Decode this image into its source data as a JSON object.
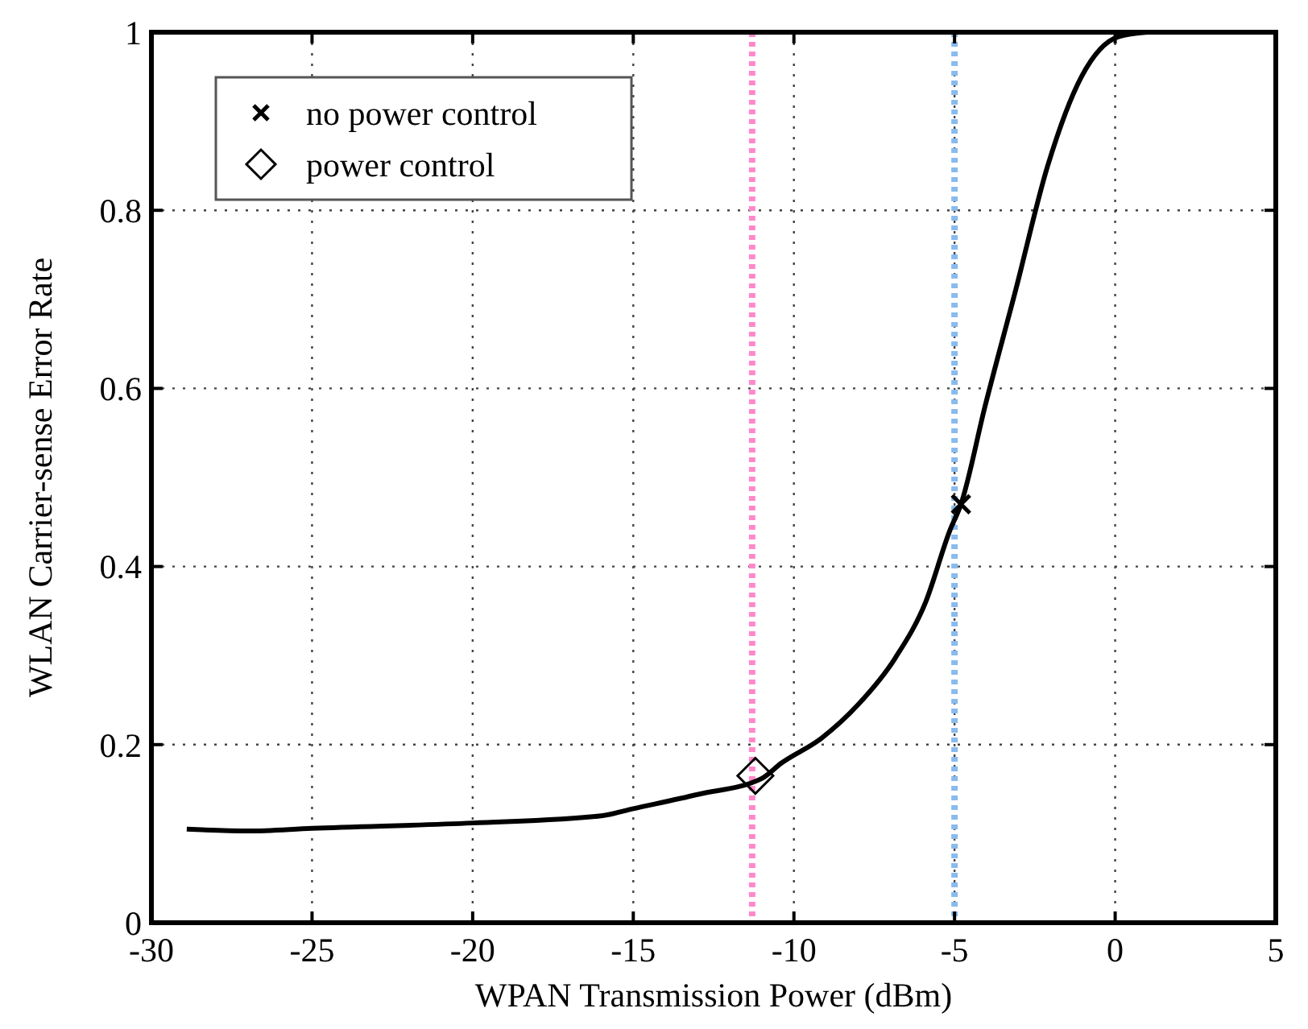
{
  "chart_data": {
    "type": "line",
    "xlabel": "WPAN Transmission Power (dBm)",
    "ylabel": "WLAN Carrier-sense Error Rate",
    "xlim": [
      -30,
      5
    ],
    "ylim": [
      0,
      1
    ],
    "xticks": [
      -30,
      -25,
      -20,
      -15,
      -10,
      -5,
      0,
      5
    ],
    "yticks": [
      0,
      0.2,
      0.4,
      0.6,
      0.8,
      1
    ],
    "grid": true,
    "legend": "top left",
    "series": [
      {
        "color": "#000000",
        "marker": "none",
        "line_style": "solid",
        "x": [
          -28.9,
          -27,
          -25,
          -20,
          -16,
          -15,
          -13,
          -11,
          -10.4,
          -9.15,
          -8,
          -6.85,
          -5.9,
          -5.15,
          -4.8,
          -4.05,
          -3.1,
          -2.1,
          -1.05,
          0.1,
          1
        ],
        "values": [
          0.105,
          0.103,
          0.106,
          0.112,
          0.12,
          0.128,
          0.144,
          0.162,
          0.179,
          0.207,
          0.245,
          0.297,
          0.36,
          0.44,
          0.47,
          0.58,
          0.71,
          0.85,
          0.95,
          0.995,
          1
        ]
      },
      {
        "type": "scatter",
        "name": "no power control",
        "color": "#000000",
        "marker": "cross",
        "x": [
          -4.8
        ],
        "values": [
          0.47
        ]
      },
      {
        "type": "scatter",
        "name": "power control",
        "color": "#000000",
        "marker": "diamond",
        "x": [
          -11.2
        ],
        "values": [
          0.165
        ]
      }
    ],
    "ref_lines": [
      {
        "axis": "x",
        "value": -11.3,
        "color": "#ff88cc",
        "line_style": "dotted"
      },
      {
        "axis": "x",
        "value": -5,
        "color": "#88bbee",
        "line_style": "dotted"
      }
    ]
  }
}
